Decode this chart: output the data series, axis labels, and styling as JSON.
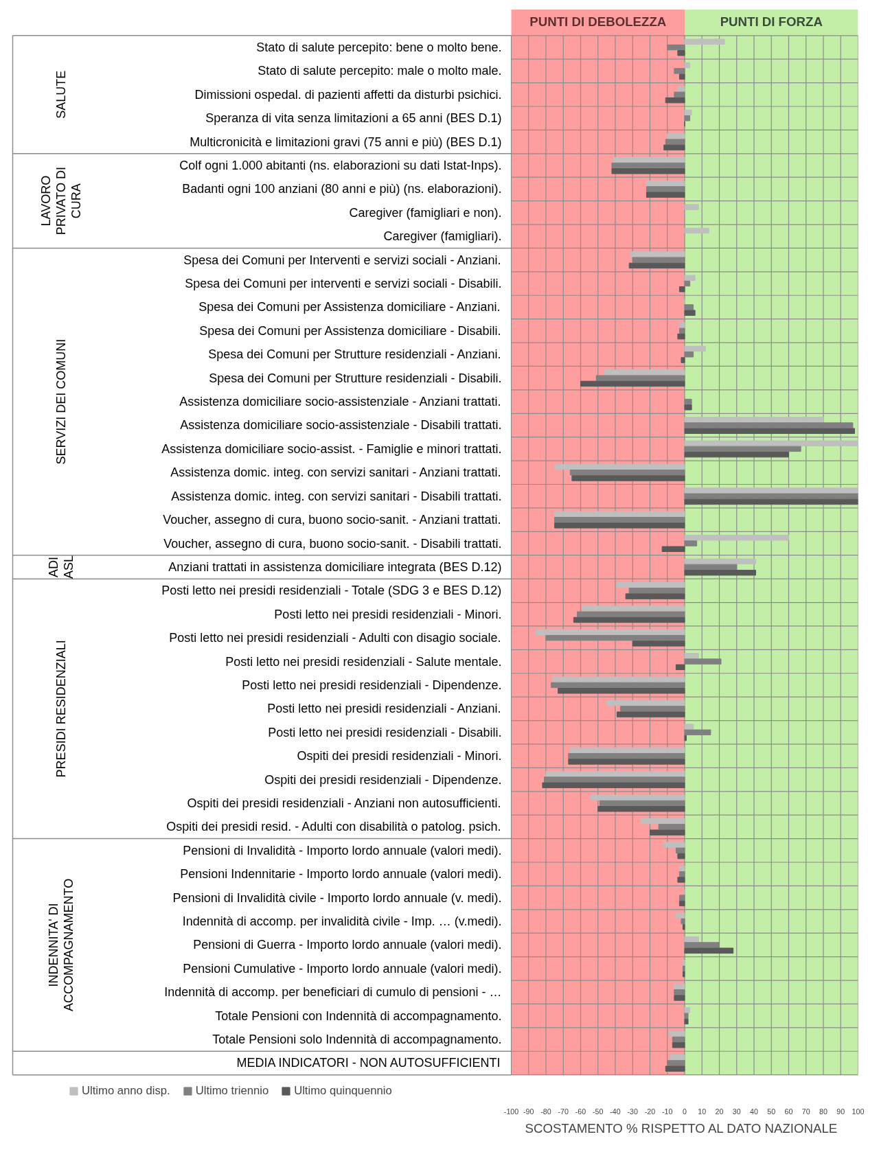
{
  "chart_data": {
    "type": "bar",
    "orientation": "horizontal",
    "xlabel": "SCOSTAMENTO % RISPETTO AL DATO NAZIONALE",
    "categories": [
      "Stato di salute percepito: bene o molto bene.",
      "Stato di salute percepito: male o molto male.",
      "Dimissioni ospedal. di pazienti affetti da disturbi psichici.",
      "Speranza di vita senza limitazioni a 65 anni (BES D.1)",
      "Multicronicità e limitazioni gravi (75 anni e più) (BES D.1)",
      "Colf ogni 1.000 abitanti (ns. elaborazioni su dati Istat-Inps).",
      "Badanti ogni 100 anziani (80 anni e più) (ns. elaborazioni).",
      "Caregiver (famigliari e non).",
      "Caregiver (famigliari).",
      "Spesa dei Comuni per Interventi e servizi sociali - Anziani.",
      "Spesa dei Comuni per interventi e servizi sociali - Disabili.",
      "Spesa dei Comuni per Assistenza domiciliare - Anziani.",
      "Spesa dei Comuni per Assistenza domiciliare - Disabili.",
      "Spesa dei Comuni per Strutture residenziali - Anziani.",
      "Spesa dei Comuni per Strutture residenziali - Disabili.",
      "Assistenza domiciliare socio-assistenziale - Anziani trattati.",
      "Assistenza domiciliare socio-assistenziale - Disabili trattati.",
      "Assistenza domiciliare socio-assist. - Famiglie e minori trattati.",
      "Assistenza domic. integ. con servizi sanitari - Anziani trattati.",
      "Assistenza domic. integ. con servizi sanitari - Disabili trattati.",
      "Voucher, assegno di cura, buono socio-sanit. - Anziani trattati.",
      "Voucher, assegno di cura, buono socio-sanit. - Disabili trattati.",
      "Anziani trattati in assistenza domiciliare integrata (BES D.12)",
      "Posti letto nei presidi residenziali - Totale (SDG 3 e BES D.12)",
      "Posti letto nei presidi residenziali - Minori.",
      "Posti letto nei presidi residenziali - Adulti con disagio sociale.",
      "Posti letto nei presidi residenziali - Salute mentale.",
      "Posti letto nei presidi residenziali - Dipendenze.",
      "Posti letto nei presidi residenziali - Anziani.",
      "Posti letto nei presidi residenziali - Disabili.",
      "Ospiti dei presidi residenziali - Minori.",
      "Ospiti dei presidi residenziali - Dipendenze.",
      "Ospiti dei presidi residenziali - Anziani non autosufficienti.",
      "Ospiti dei presidi resid. - Adulti con disabilità o patolog. psich.",
      "Pensioni di Invalidità - Importo lordo annuale (valori medi).",
      "Pensioni Indennitarie - Importo lordo annuale (valori medi).",
      "Pensioni di Invalidità civile - Importo lordo annuale (v. medi).",
      "Indennità di accomp. per invalidità civile - Imp. … (v.medi).",
      "Pensioni di Guerra - Importo lordo annuale (valori medi).",
      "Pensioni Cumulative - Importo lordo annuale (valori medi).",
      "Indennità di accomp. per beneficiari di cumulo di pensioni - …",
      "Totale Pensioni con Indennità di accompagnamento.",
      "Totale Pensioni solo Indennità di accompagnamento.",
      "MEDIA INDICATORI - NON AUTOSUFFICIENTI"
    ],
    "series": [
      {
        "name": "Ultimo anno disp.",
        "color": "#bfbfbf",
        "values": [
          23,
          3,
          -4,
          4,
          -10,
          -41,
          -22,
          8,
          14,
          -31,
          6,
          0,
          -3,
          12,
          -46,
          null,
          80,
          100,
          -75,
          100,
          -75,
          60,
          41,
          -39,
          -59,
          -86,
          8,
          -76,
          -45,
          5,
          -66,
          -80,
          -54,
          -25,
          -12,
          -3,
          0,
          -5,
          8,
          -1,
          -6,
          3,
          -9,
          -8
        ]
      },
      {
        "name": "Ultimo triennio",
        "color": "#808080",
        "values": [
          -10,
          -6,
          -6,
          3,
          -11,
          -42,
          -22,
          null,
          null,
          -30,
          3,
          5,
          -3,
          5,
          -51,
          4,
          97,
          67,
          -66,
          100,
          -75,
          7,
          30,
          -32,
          -62,
          -80,
          21,
          -77,
          -37,
          15,
          -67,
          -81,
          -49,
          -15,
          -5,
          -3,
          -3,
          -2,
          20,
          -1,
          -6,
          2,
          -7,
          -10
        ]
      },
      {
        "name": "Ultimo quinquennio",
        "color": "#595959",
        "values": [
          -4,
          -3,
          -11,
          0,
          -12,
          -42,
          -22,
          null,
          null,
          -32,
          -3,
          6,
          -4,
          -2,
          -60,
          4,
          98,
          60,
          -65,
          100,
          -75,
          -13,
          41,
          -34,
          -64,
          -30,
          -5,
          -73,
          -39,
          1,
          -67,
          -82,
          -50,
          -20,
          -4,
          -4,
          -3,
          -1,
          28,
          -1,
          -6,
          2,
          -7,
          -11
        ]
      }
    ],
    "xlim": [
      -100,
      100
    ],
    "xticks": [
      -100,
      -90,
      -80,
      -70,
      -60,
      -50,
      -40,
      -30,
      -20,
      -10,
      0,
      10,
      20,
      30,
      40,
      50,
      60,
      70,
      80,
      90,
      100
    ],
    "grid": true,
    "legend": "bottom left",
    "bands": [
      {
        "axis": "x",
        "from": -100,
        "to": 0,
        "label": "PUNTI DI DEBOLEZZA",
        "color": "#ff4f4f"
      },
      {
        "axis": "x",
        "from": 0,
        "to": 100,
        "label": "PUNTI DI FORZA",
        "color": "#8fe060"
      }
    ],
    "annotations": [
      "SALUTE",
      "LAVORO PRIVATO DI CURA",
      "SERVIZI DEI COMUNI",
      "ADI ASL",
      "PRESIDI RESIDENZIALI",
      "INDENNITA' DI ACCOMPAGNAMENTO"
    ]
  }
}
